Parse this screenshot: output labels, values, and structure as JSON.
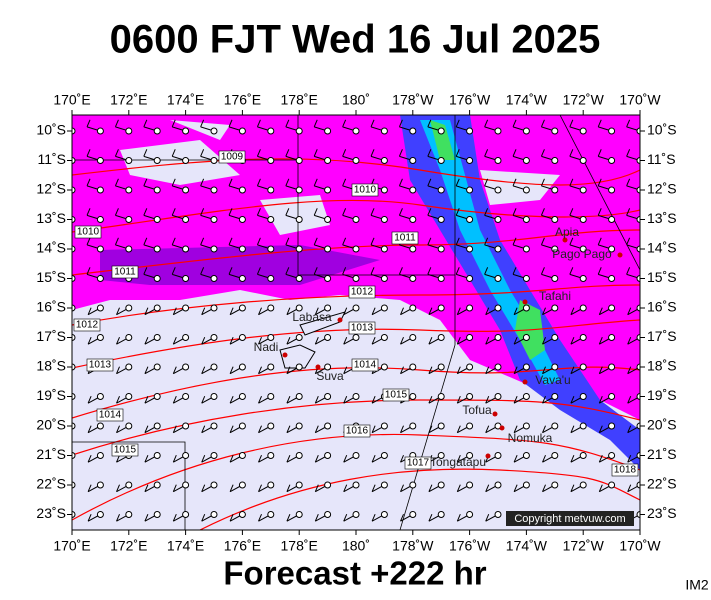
{
  "header": {
    "title": "0600 FJT Wed 16 Jul 2025"
  },
  "axes": {
    "lon_labels": [
      "170˚E",
      "172˚E",
      "174˚E",
      "176˚E",
      "178˚E",
      "180˚",
      "178˚W",
      "176˚W",
      "174˚W",
      "172˚W",
      "170˚W"
    ],
    "lat_labels": [
      "10˚S",
      "11˚S",
      "12˚S",
      "13˚S",
      "14˚S",
      "15˚S",
      "16˚S",
      "17˚S",
      "18˚S",
      "19˚S",
      "20˚S",
      "21˚S",
      "22˚S",
      "23˚S"
    ]
  },
  "places": [
    {
      "label": "Apia"
    },
    {
      "label": "Pago Pago"
    },
    {
      "label": "Tafahi"
    },
    {
      "label": "Labasa"
    },
    {
      "label": "Nadi"
    },
    {
      "label": "Suva"
    },
    {
      "label": "Vava'u"
    },
    {
      "label": "Tofua"
    },
    {
      "label": "Nomuka"
    },
    {
      "label": "Tongatapu"
    }
  ],
  "isobar_labels": [
    "1009",
    "1010",
    "1010",
    "1011",
    "1011",
    "1012",
    "1012",
    "1013",
    "1013",
    "1014",
    "1015",
    "1014",
    "1016",
    "1015",
    "1017",
    "1018"
  ],
  "copyright": "Copyright metvuw.com",
  "footer": {
    "text": "Forecast +222 hr",
    "code": "IM2"
  }
}
